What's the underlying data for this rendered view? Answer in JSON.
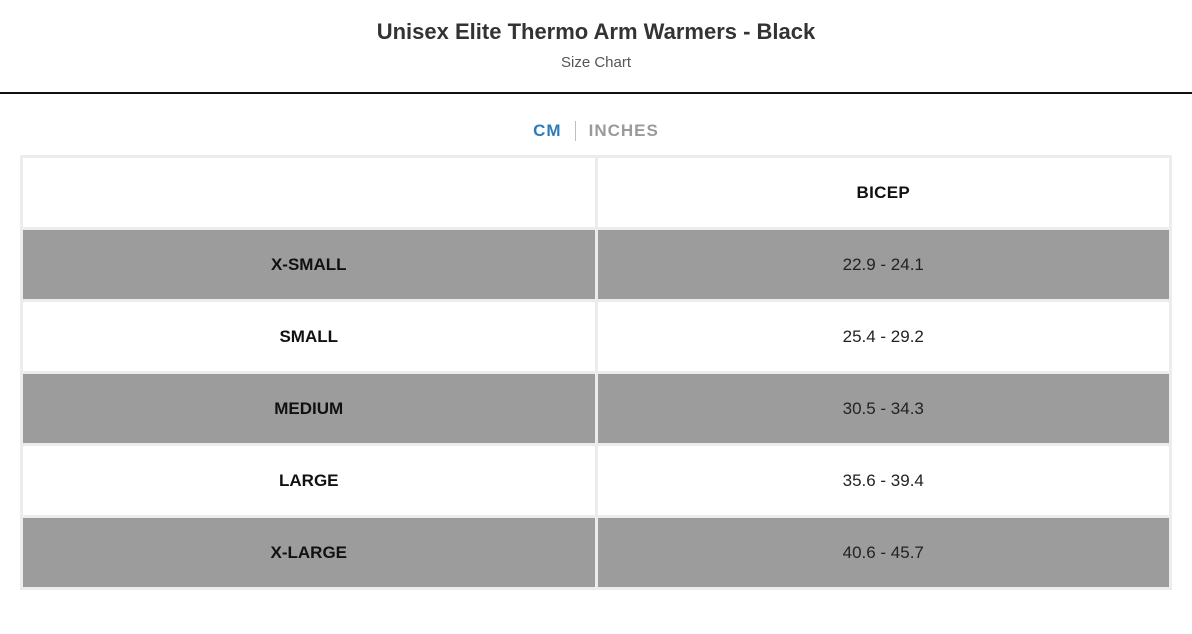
{
  "header": {
    "title": "Unisex Elite Thermo Arm Warmers - Black",
    "subtitle": "Size Chart"
  },
  "units": {
    "cm_label": "CM",
    "inches_label": "INCHES",
    "selected": "CM"
  },
  "table": {
    "columns": [
      "",
      "BICEP"
    ],
    "rows": [
      {
        "size": "X-SMALL",
        "bicep": "22.9 - 24.1",
        "shaded": true
      },
      {
        "size": "SMALL",
        "bicep": "25.4 - 29.2",
        "shaded": false
      },
      {
        "size": "MEDIUM",
        "bicep": "30.5 - 34.3",
        "shaded": true
      },
      {
        "size": "LARGE",
        "bicep": "35.6 - 39.4",
        "shaded": false
      },
      {
        "size": "X-LARGE",
        "bicep": "40.6 - 45.7",
        "shaded": true
      }
    ]
  },
  "colors": {
    "accent_blue": "#2e7dbb",
    "inactive_gray": "#9a9a9a",
    "row_shade_gray": "#9c9c9c",
    "table_border_gray": "#ececec",
    "divider_black": "#111111"
  }
}
